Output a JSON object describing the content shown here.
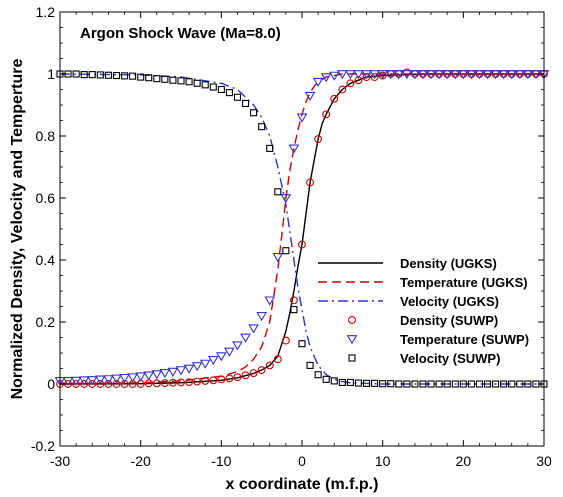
{
  "chart_data": {
    "type": "line",
    "title": "Argon Shock Wave (Ma=8.0)",
    "xlabel": "x coordinate (m.f.p.)",
    "ylabel": "Normalized Density, Velocity and Temperture",
    "xlim": [
      -30,
      30
    ],
    "ylim": [
      -0.2,
      1.2
    ],
    "x_ticks": [
      -30,
      -20,
      -10,
      0,
      10,
      20,
      30
    ],
    "y_ticks": [
      -0.2,
      0,
      0.2,
      0.4,
      0.6,
      0.8,
      1,
      1.2
    ],
    "x_tick_labels": [
      "-30",
      "-20",
      "-10",
      "0",
      "10",
      "20",
      "30"
    ],
    "y_tick_labels": [
      "-0.2",
      "0",
      "0.2",
      "0.4",
      "0.6",
      "0.8",
      "1",
      "1.2"
    ],
    "grid": false,
    "legend_position": "right-center",
    "series": [
      {
        "name": "Density (UGKS)",
        "style": "solid",
        "color": "#000000",
        "x": [
          -30,
          -20,
          -15,
          -10,
          -8,
          -6,
          -5,
          -4,
          -3,
          -2,
          -1.5,
          -1,
          -0.5,
          0,
          0.5,
          1,
          1.5,
          2,
          2.5,
          3,
          4,
          5,
          6,
          7,
          8,
          10,
          15,
          20,
          30
        ],
        "y": [
          0,
          0.001,
          0.004,
          0.012,
          0.02,
          0.034,
          0.045,
          0.06,
          0.09,
          0.17,
          0.23,
          0.3,
          0.38,
          0.45,
          0.55,
          0.65,
          0.72,
          0.79,
          0.84,
          0.87,
          0.92,
          0.95,
          0.97,
          0.98,
          0.99,
          0.995,
          1,
          1,
          1
        ]
      },
      {
        "name": "Temperature (UGKS)",
        "style": "dashed",
        "color": "#cc0000",
        "x": [
          -30,
          -20,
          -15,
          -10,
          -8,
          -7,
          -6,
          -5,
          -4,
          -3,
          -2.5,
          -2,
          -1.5,
          -1,
          -0.5,
          0,
          0.5,
          1,
          1.5,
          2,
          3,
          4,
          5,
          6,
          10,
          20,
          30
        ],
        "y": [
          0,
          0.004,
          0.01,
          0.025,
          0.04,
          0.055,
          0.08,
          0.12,
          0.2,
          0.37,
          0.48,
          0.6,
          0.69,
          0.76,
          0.82,
          0.87,
          0.91,
          0.94,
          0.96,
          0.975,
          0.99,
          0.995,
          1,
          1,
          1,
          1,
          1
        ]
      },
      {
        "name": "Velocity (UGKS)",
        "style": "dashdot",
        "color": "#3333cc",
        "x": [
          -30,
          -20,
          -15,
          -10,
          -8,
          -6,
          -5,
          -4,
          -3,
          -2,
          -1.5,
          -1,
          -0.5,
          0,
          0.5,
          1,
          1.5,
          2,
          3,
          4,
          5,
          6,
          8,
          10,
          20,
          30
        ],
        "y": [
          1,
          0.997,
          0.99,
          0.97,
          0.95,
          0.9,
          0.86,
          0.8,
          0.7,
          0.58,
          0.49,
          0.4,
          0.31,
          0.24,
          0.17,
          0.12,
          0.09,
          0.06,
          0.03,
          0.015,
          0.008,
          0.004,
          0.002,
          0,
          0,
          0
        ]
      },
      {
        "name": "Density (SUWP)",
        "style": "marker-circle",
        "color": "#cc0000",
        "x": [
          -30,
          -29,
          -28,
          -27,
          -26,
          -25,
          -24,
          -23,
          -22,
          -21,
          -20,
          -19,
          -18,
          -17,
          -16,
          -15,
          -14,
          -13,
          -12,
          -11,
          -10,
          -9,
          -8,
          -7,
          -6,
          -5,
          -4,
          -3,
          -2,
          -1,
          0,
          1,
          2,
          3,
          4,
          5,
          6,
          7,
          8,
          9,
          10,
          11,
          12,
          13,
          14,
          15,
          16,
          17,
          18,
          19,
          20,
          21,
          22,
          23,
          24,
          25,
          26,
          27,
          28,
          29,
          30
        ],
        "y": [
          0,
          0,
          0,
          0,
          0,
          0,
          0,
          0,
          0,
          0,
          0,
          0.002,
          0.002,
          0.003,
          0.004,
          0.005,
          0.006,
          0.008,
          0.01,
          0.012,
          0.015,
          0.018,
          0.022,
          0.028,
          0.035,
          0.045,
          0.06,
          0.08,
          0.14,
          0.27,
          0.45,
          0.65,
          0.79,
          0.87,
          0.92,
          0.95,
          0.97,
          0.98,
          0.99,
          0.99,
          0.995,
          1,
          1,
          1.005,
          1,
          1,
          1,
          1,
          1,
          1,
          1,
          1,
          1,
          1,
          1,
          1,
          1,
          1,
          1,
          1,
          1
        ]
      },
      {
        "name": "Temperature (SUWP)",
        "style": "marker-triangle-down",
        "color": "#3333cc",
        "x": [
          -30,
          -29,
          -28,
          -27,
          -26,
          -25,
          -24,
          -23,
          -22,
          -21,
          -20,
          -19,
          -18,
          -17,
          -16,
          -15,
          -14,
          -13,
          -12,
          -11,
          -10,
          -9,
          -8,
          -7,
          -6,
          -5,
          -4,
          -3,
          -2,
          -1,
          0,
          1,
          2,
          3,
          4,
          5,
          6,
          7,
          8,
          9,
          10,
          11,
          12,
          13,
          14,
          15,
          16,
          17,
          18,
          19,
          20,
          21,
          22,
          23,
          24,
          25,
          26,
          27,
          28,
          29,
          30
        ],
        "y": [
          0.01,
          0.01,
          0.011,
          0.012,
          0.013,
          0.015,
          0.016,
          0.018,
          0.02,
          0.022,
          0.025,
          0.028,
          0.032,
          0.036,
          0.04,
          0.045,
          0.05,
          0.058,
          0.066,
          0.078,
          0.09,
          0.105,
          0.125,
          0.15,
          0.18,
          0.22,
          0.27,
          0.41,
          0.6,
          0.76,
          0.86,
          0.93,
          0.975,
          0.99,
          0.995,
          1,
          1,
          1,
          1,
          1,
          1,
          1,
          1,
          1,
          1,
          1,
          1,
          1,
          1,
          1,
          1,
          1,
          1,
          1,
          1,
          1,
          1,
          1,
          1,
          1,
          1
        ]
      },
      {
        "name": "Velocity (SUWP)",
        "style": "marker-square",
        "color": "#000000",
        "x": [
          -30,
          -29,
          -28,
          -27,
          -26,
          -25,
          -24,
          -23,
          -22,
          -21,
          -20,
          -19,
          -18,
          -17,
          -16,
          -15,
          -14,
          -13,
          -12,
          -11,
          -10,
          -9,
          -8,
          -7,
          -6,
          -5,
          -4,
          -3,
          -2,
          -1,
          0,
          1,
          2,
          3,
          4,
          5,
          6,
          7,
          8,
          9,
          10,
          11,
          12,
          13,
          14,
          15,
          16,
          17,
          18,
          19,
          20,
          21,
          22,
          23,
          24,
          25,
          26,
          27,
          28,
          29,
          30
        ],
        "y": [
          1,
          1,
          1,
          0.998,
          0.998,
          0.997,
          0.996,
          0.995,
          0.994,
          0.993,
          0.99,
          0.988,
          0.985,
          0.983,
          0.98,
          0.978,
          0.975,
          0.97,
          0.965,
          0.958,
          0.95,
          0.94,
          0.925,
          0.905,
          0.875,
          0.83,
          0.76,
          0.62,
          0.43,
          0.24,
          0.13,
          0.06,
          0.03,
          0.015,
          0.01,
          0.005,
          0.005,
          0.003,
          0.002,
          0.002,
          0.001,
          0.001,
          0,
          0,
          0,
          0,
          0,
          0,
          0,
          0,
          0,
          0,
          0,
          0,
          0,
          0,
          0,
          0,
          0,
          0,
          0
        ]
      }
    ]
  }
}
